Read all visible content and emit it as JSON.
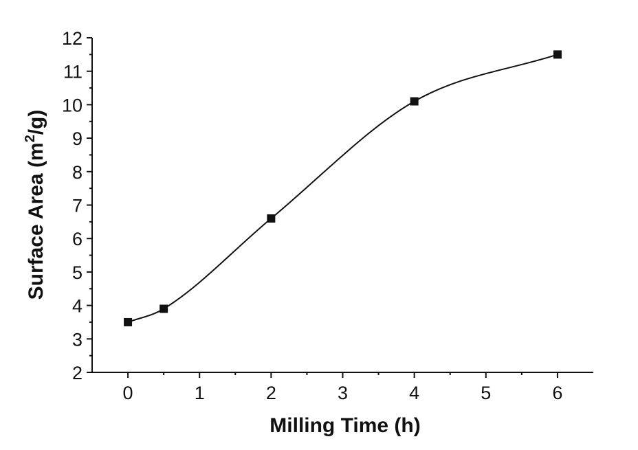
{
  "chart_data": {
    "type": "scatter",
    "title": "",
    "xlabel": "Milling Time (h)",
    "ylabel_main": "Surface Area (m",
    "ylabel_sup": "2",
    "ylabel_tail": "/g)",
    "xlim": [
      -0.5,
      6.5
    ],
    "ylim": [
      2,
      12
    ],
    "x_ticks": [
      0,
      1,
      2,
      3,
      4,
      5,
      6
    ],
    "y_ticks": [
      2,
      3,
      4,
      5,
      6,
      7,
      8,
      9,
      10,
      11,
      12
    ],
    "x_minor_ticks": [
      0.5,
      1.5,
      2.5,
      3.5,
      4.5,
      5.5
    ],
    "y_minor_ticks": [
      2.5,
      3.5,
      4.5,
      5.5,
      6.5,
      7.5,
      8.5,
      9.5,
      10.5,
      11.5
    ],
    "grid": false,
    "series": [
      {
        "name": "Surface Area",
        "marker": "square",
        "x": [
          0,
          0.5,
          2,
          4,
          6
        ],
        "y": [
          3.5,
          3.9,
          6.6,
          10.1,
          11.5
        ]
      }
    ],
    "fit_line": "smooth sigmoidal fit through data"
  }
}
